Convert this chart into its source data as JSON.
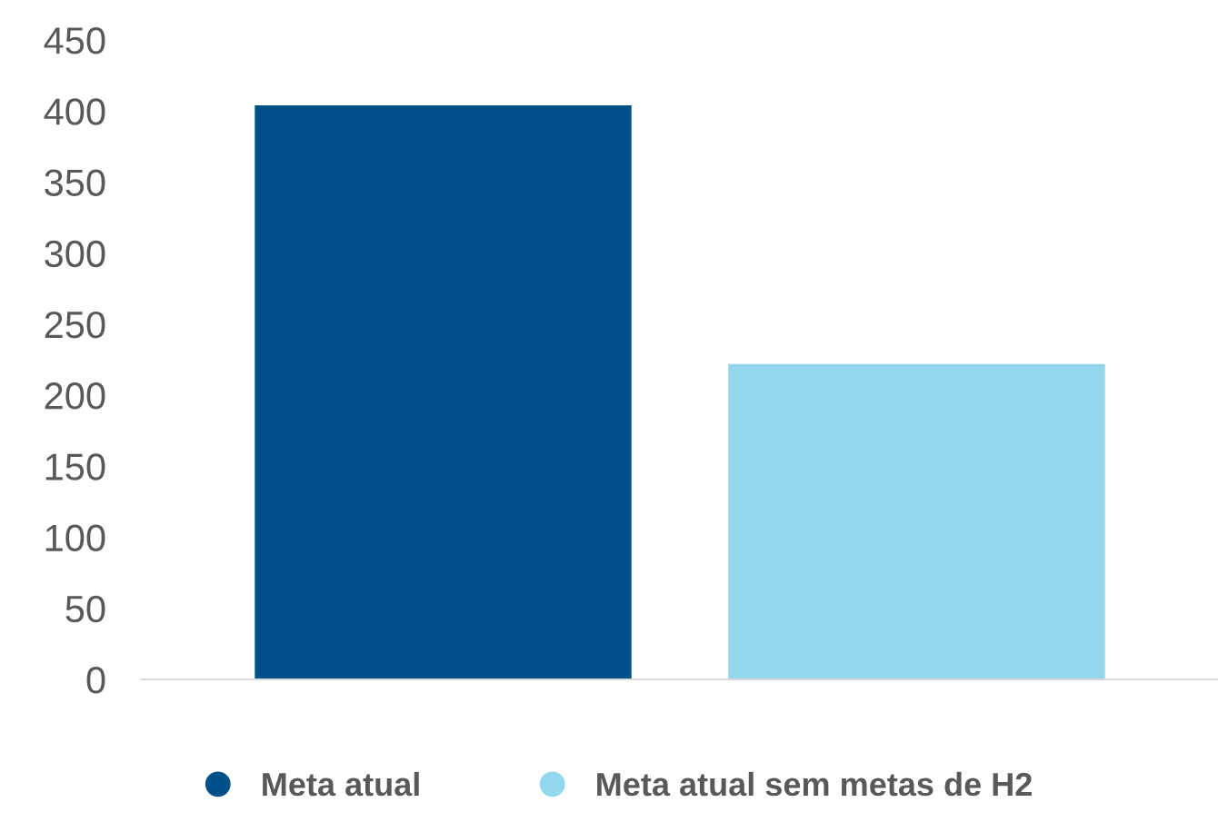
{
  "chart_data": {
    "type": "bar",
    "categories": [
      null
    ],
    "series": [
      {
        "name": "Meta atual",
        "color": "#005189",
        "values": [
          404
        ]
      },
      {
        "name": "Meta atual sem metas de H2",
        "color": "#93d7ee",
        "values": [
          222
        ]
      }
    ],
    "ylim": [
      0,
      450
    ],
    "yticks": [
      0,
      50,
      100,
      150,
      200,
      250,
      300,
      350,
      400,
      450
    ],
    "grid": false,
    "legend": "bottom"
  }
}
